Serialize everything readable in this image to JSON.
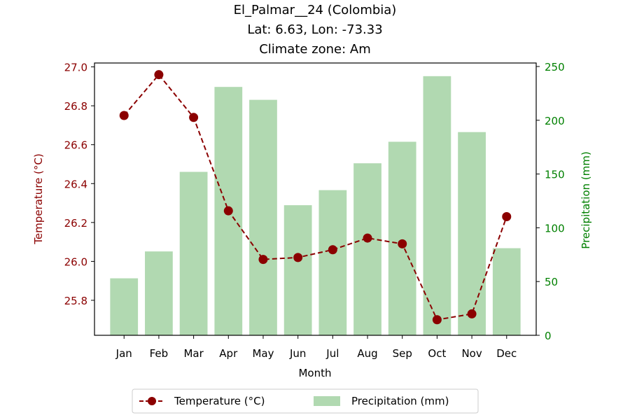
{
  "chart_data": {
    "type": "bar+line",
    "title": [
      "El_Palmar__24 (Colombia)",
      "Lat: 6.63, Lon: -73.33",
      "Climate zone: Am"
    ],
    "xlabel": "Month",
    "categories": [
      "Jan",
      "Feb",
      "Mar",
      "Apr",
      "May",
      "Jun",
      "Jul",
      "Aug",
      "Sep",
      "Oct",
      "Nov",
      "Dec"
    ],
    "temperature": {
      "name": "Temperature (°C)",
      "axis_label": "Temperature (°C)",
      "color": "#8b0000",
      "values": [
        26.75,
        26.96,
        26.74,
        26.26,
        26.01,
        26.02,
        26.06,
        26.12,
        26.09,
        25.7,
        25.73,
        26.23
      ],
      "ylim": [
        25.62,
        27.02
      ],
      "ticks": [
        "25.8",
        "26.0",
        "26.2",
        "26.4",
        "26.6",
        "26.8",
        "27.0"
      ]
    },
    "precipitation": {
      "name": "Precipitation (mm)",
      "axis_label": "Precipitation (mm)",
      "color": "#b1d9b1",
      "axis_color": "#008000",
      "values": [
        53,
        78,
        152,
        231,
        219,
        121,
        135,
        160,
        180,
        241,
        189,
        81
      ],
      "ylim": [
        0,
        250
      ],
      "ticks": [
        "0",
        "50",
        "100",
        "150",
        "200",
        "250"
      ]
    },
    "legend": {
      "placement": "bottom-center"
    },
    "grid": false
  }
}
